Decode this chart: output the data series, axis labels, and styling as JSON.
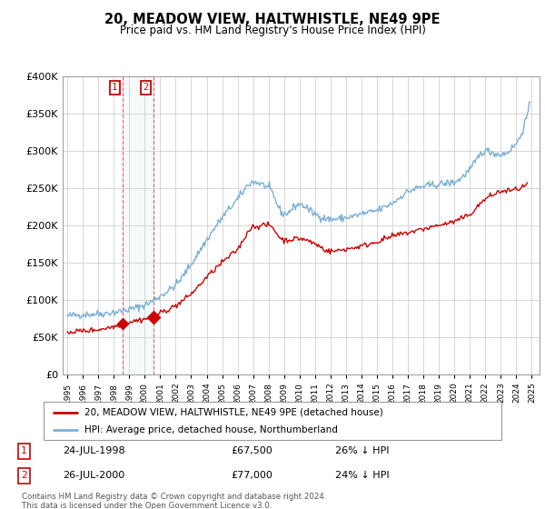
{
  "title": "20, MEADOW VIEW, HALTWHISTLE, NE49 9PE",
  "subtitle": "Price paid vs. HM Land Registry's House Price Index (HPI)",
  "legend_line1": "20, MEADOW VIEW, HALTWHISTLE, NE49 9PE (detached house)",
  "legend_line2": "HPI: Average price, detached house, Northumberland",
  "footnote": "Contains HM Land Registry data © Crown copyright and database right 2024.\nThis data is licensed under the Open Government Licence v3.0.",
  "sale1_label": "1",
  "sale1_date": "24-JUL-1998",
  "sale1_price": "£67,500",
  "sale1_hpi": "26% ↓ HPI",
  "sale1_year": 1998.56,
  "sale1_value": 67500,
  "sale2_label": "2",
  "sale2_date": "26-JUL-2000",
  "sale2_price": "£77,000",
  "sale2_hpi": "24% ↓ HPI",
  "sale2_year": 2000.56,
  "sale2_value": 77000,
  "price_color": "#cc0000",
  "hpi_color": "#7ab0d4",
  "background_color": "#ffffff",
  "grid_color": "#d0d0d0",
  "ylim": [
    0,
    400000
  ],
  "yticks": [
    0,
    50000,
    100000,
    150000,
    200000,
    250000,
    300000,
    350000,
    400000
  ],
  "ytick_labels": [
    "£0",
    "£50K",
    "£100K",
    "£150K",
    "£200K",
    "£250K",
    "£300K",
    "£350K",
    "£400K"
  ],
  "xlim_left": 1994.7,
  "xlim_right": 2025.5
}
